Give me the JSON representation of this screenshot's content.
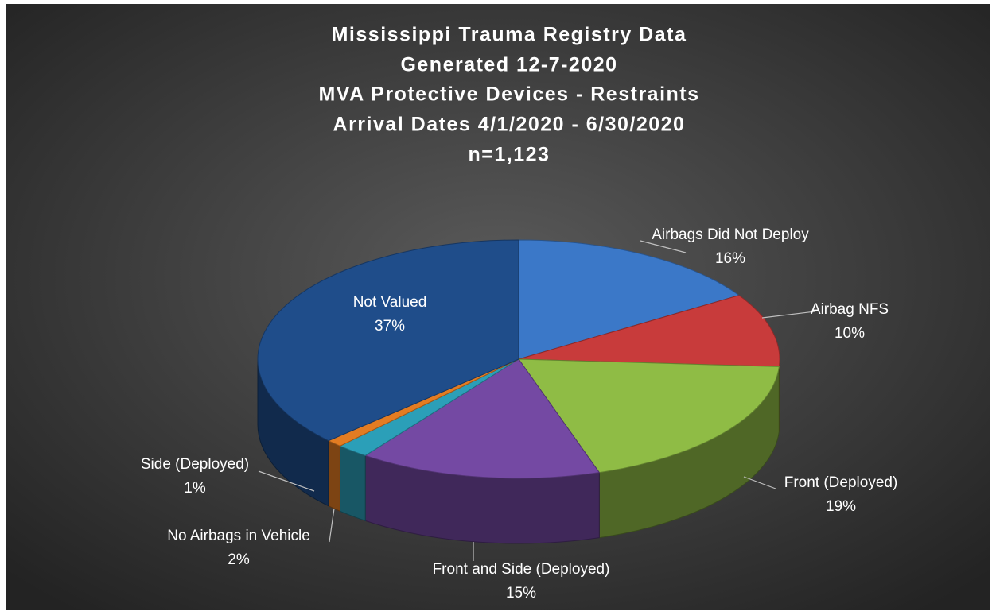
{
  "chart_data": {
    "type": "pie3d",
    "title": [
      "Mississippi Trauma Registry Data",
      "Generated 12-7-2020",
      "MVA Protective Devices - Restraints",
      "Arrival Dates 4/1/2020 - 6/30/2020",
      "n=1,123"
    ],
    "categories": [
      "Airbags Did Not Deploy",
      "Airbag NFS",
      "Front (Deployed)",
      "Front and Side (Deployed)",
      "No Airbags in Vehicle",
      "Side (Deployed)",
      "Not Valued"
    ],
    "values": [
      16,
      10,
      19,
      15,
      2,
      1,
      37
    ],
    "value_labels": [
      "16%",
      "10%",
      "19%",
      "15%",
      "2%",
      "1%",
      "37%"
    ],
    "colors": [
      "#3b78c8",
      "#c83b3b",
      "#8fbc45",
      "#7449a3",
      "#2b9fb8",
      "#e37c22",
      "#1f4d8a"
    ]
  }
}
